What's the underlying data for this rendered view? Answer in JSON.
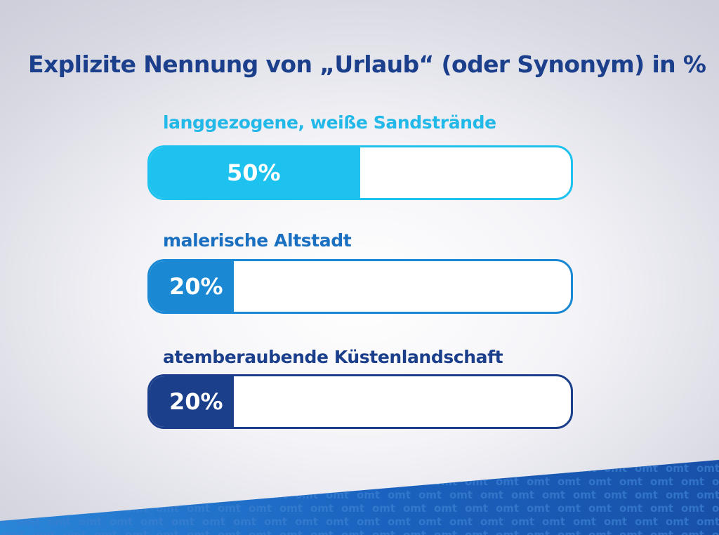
{
  "title": "Explizite Nennung von „Urlaub“ (oder Synonym) in %",
  "colors": {
    "title": "#1c3f8c",
    "background": "#ececf2",
    "watermark_band": "#1a5fb4",
    "watermark_text": "#3a7fd0"
  },
  "watermark": {
    "text": "omt"
  },
  "chart_data": {
    "type": "bar",
    "orientation": "horizontal",
    "title": "Explizite Nennung von „Urlaub“ (oder Synonym) in %",
    "xlim": [
      0,
      100
    ],
    "legend": "none",
    "grid": false,
    "bars": [
      {
        "label": "langgezogene, weiße Sandstrände",
        "value": 50,
        "value_label": "50%",
        "color": "#1ec2ee",
        "label_color": "#22b8e8"
      },
      {
        "label": "malerische Altstadt",
        "value": 20,
        "value_label": "20%",
        "color": "#1a88d3",
        "label_color": "#1a6fc0"
      },
      {
        "label": "atemberaubende Küstenlandschaft",
        "value": 20,
        "value_label": "20%",
        "color": "#1c3f8c",
        "label_color": "#1c3f8c"
      }
    ]
  }
}
